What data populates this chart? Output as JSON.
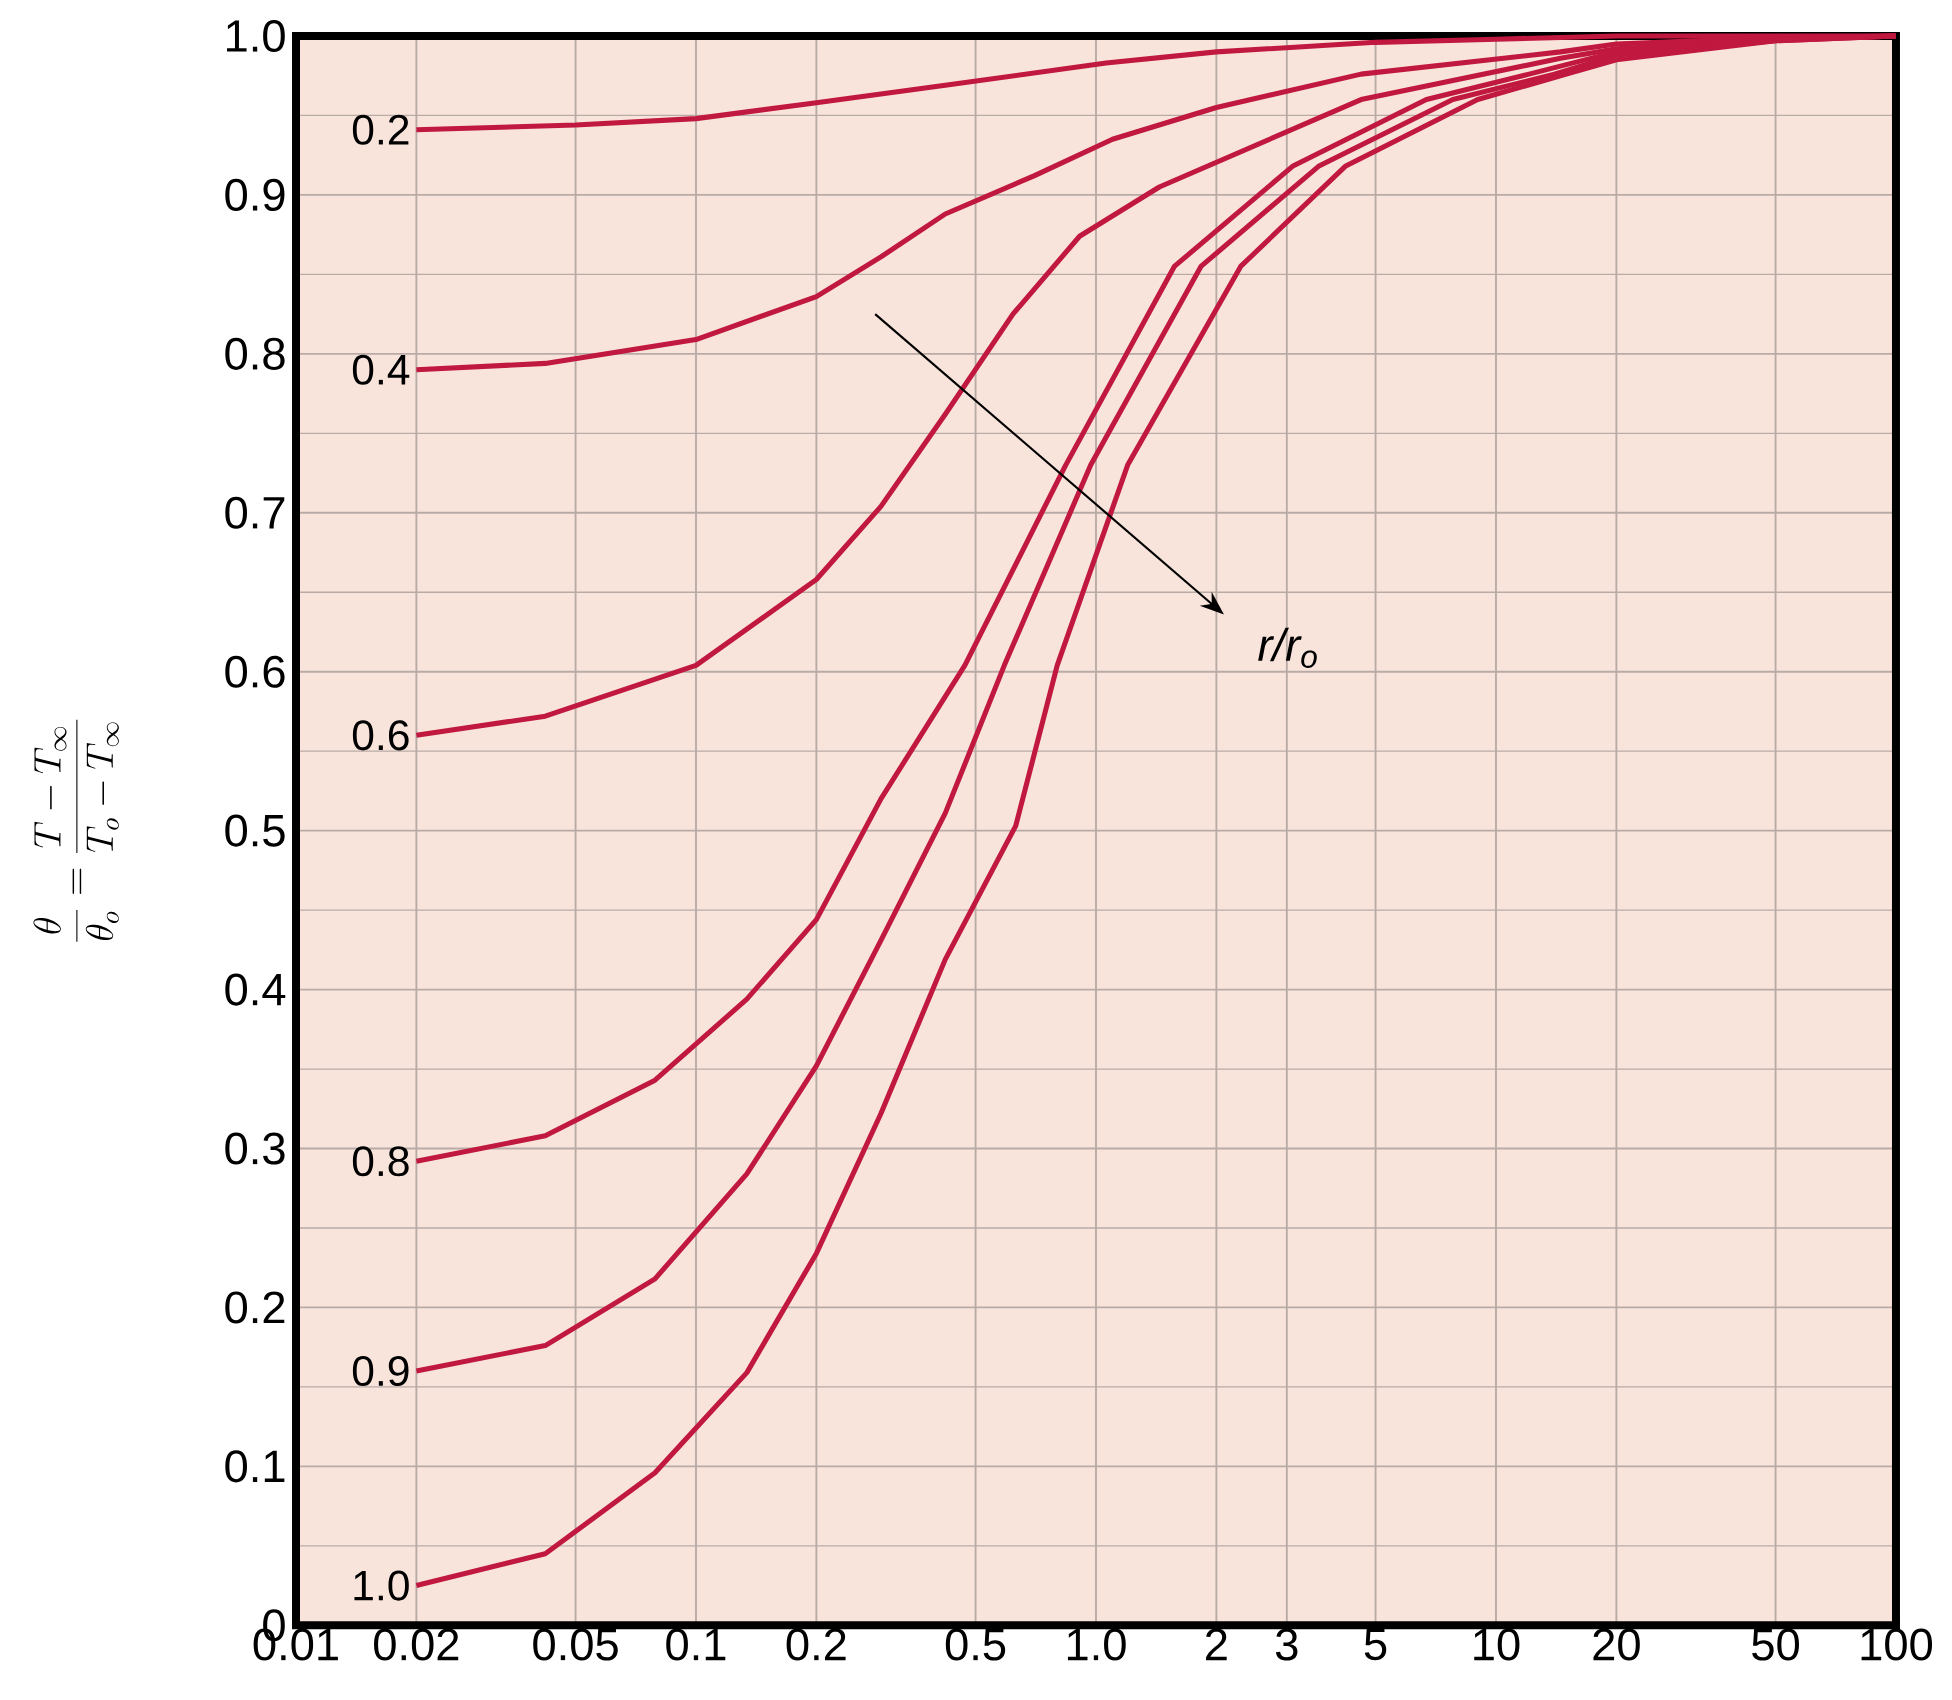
{
  "chart_data": {
    "type": "line",
    "ylabel": "\\frac{\\theta}{\\theta_o} = \\frac{T - T_\\infty}{T_o - T_\\infty}",
    "annotations": [
      "*r*/*r*$_{o}$"
    ],
    "log": "x",
    "grid": true,
    "xlim": [
      0.01,
      100
    ],
    "ylim": [
      0,
      1
    ],
    "xticks": [
      0.01,
      0.02,
      0.05,
      0.1,
      0.2,
      0.5,
      {
        "value": 1,
        "label": "1.0"
      },
      2,
      3,
      5,
      10,
      20,
      50,
      100
    ],
    "yticks": [
      0,
      0.1,
      0.2,
      0.3,
      0.4,
      0.5,
      0.6,
      0.7,
      0.8,
      0.9,
      {
        "value": 1,
        "label": "1.0"
      }
    ],
    "series": [
      {
        "name": "0.2",
        "color": "#c0183f",
        "x": [
          0.02,
          0.05,
          0.1,
          0.2,
          0.42,
          1.06,
          2,
          5,
          10,
          20,
          50,
          100
        ],
        "values": [
          0.941,
          0.944,
          0.948,
          0.958,
          0.969,
          0.983,
          0.99,
          0.996,
          0.998,
          1.0,
          1.0,
          1.0
        ]
      },
      {
        "name": "0.4",
        "color": "#c0183f",
        "x": [
          0.02,
          0.042,
          0.1,
          0.2,
          0.29,
          0.42,
          0.7,
          1.1,
          2,
          4.6,
          14.5,
          20,
          50,
          100
        ],
        "values": [
          0.79,
          0.794,
          0.809,
          0.836,
          0.861,
          0.888,
          0.912,
          0.935,
          0.955,
          0.976,
          0.99,
          0.995,
          0.999,
          1.0
        ]
      },
      {
        "name": "0.6",
        "color": "#c0183f",
        "x": [
          0.02,
          0.042,
          0.1,
          0.2,
          0.29,
          0.42,
          0.62,
          0.91,
          1.44,
          4.6,
          14.5,
          20,
          50,
          100
        ],
        "values": [
          0.56,
          0.572,
          0.604,
          0.658,
          0.704,
          0.762,
          0.825,
          0.874,
          0.905,
          0.96,
          0.986,
          0.992,
          0.998,
          1.0
        ]
      },
      {
        "name": "0.8",
        "color": "#c0183f",
        "x": [
          0.02,
          0.042,
          0.079,
          0.134,
          0.2,
          0.29,
          0.47,
          0.84,
          1.57,
          3.1,
          6.7,
          12.1,
          20,
          50,
          100
        ],
        "values": [
          0.292,
          0.308,
          0.343,
          0.394,
          0.444,
          0.52,
          0.604,
          0.73,
          0.855,
          0.918,
          0.96,
          0.976,
          0.99,
          0.998,
          1.0
        ]
      },
      {
        "name": "0.9",
        "color": "#c0183f",
        "x": [
          0.02,
          0.042,
          0.079,
          0.134,
          0.2,
          0.29,
          0.42,
          0.59,
          0.97,
          1.83,
          3.6,
          7.8,
          14,
          20,
          50,
          100
        ],
        "values": [
          0.16,
          0.176,
          0.218,
          0.284,
          0.352,
          0.431,
          0.511,
          0.604,
          0.73,
          0.855,
          0.918,
          0.96,
          0.976,
          0.988,
          0.997,
          1.0
        ]
      },
      {
        "name": "1.0",
        "color": "#c0183f",
        "x": [
          0.02,
          0.042,
          0.079,
          0.134,
          0.2,
          0.29,
          0.42,
          0.63,
          0.8,
          1.2,
          2.3,
          4.2,
          9,
          15,
          20,
          50,
          100
        ],
        "values": [
          0.025,
          0.045,
          0.096,
          0.159,
          0.234,
          0.322,
          0.419,
          0.503,
          0.604,
          0.73,
          0.855,
          0.918,
          0.96,
          0.976,
          0.985,
          0.997,
          1.0
        ]
      }
    ]
  }
}
